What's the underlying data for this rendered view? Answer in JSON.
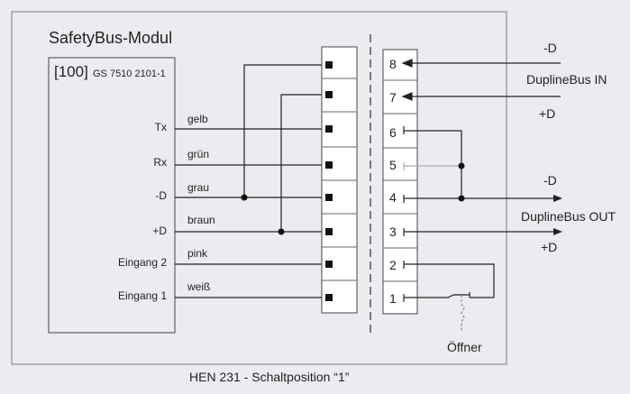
{
  "module": {
    "title": "SafetyBus-Modul",
    "address": "[100]",
    "part_number": "GS 7510 2101-1"
  },
  "signals": [
    {
      "name": "Tx",
      "wire": "gelb"
    },
    {
      "name": "Rx",
      "wire": "grün"
    },
    {
      "name": "-D",
      "wire": "grau"
    },
    {
      "name": "+D",
      "wire": "braun"
    },
    {
      "name": "Eingang 2",
      "wire": "pink"
    },
    {
      "name": "Eingang 1",
      "wire": "weiß"
    }
  ],
  "terminals": [
    "8",
    "7",
    "6",
    "5",
    "4",
    "3",
    "2",
    "1"
  ],
  "bus_labels": {
    "in_minus": "-D",
    "in_name": "DuplineBus IN",
    "in_plus": "+D",
    "out_minus": "-D",
    "out_name": "DuplineBus OUT",
    "out_plus": "+D"
  },
  "contact_label": "Öffner",
  "caption": "HEN 231 - Schaltposition “1”",
  "colors": {
    "background": "#eaecef",
    "line": "#222222",
    "grey_wire": "#aaaaaa",
    "terminal_fill": "#ffffff"
  }
}
